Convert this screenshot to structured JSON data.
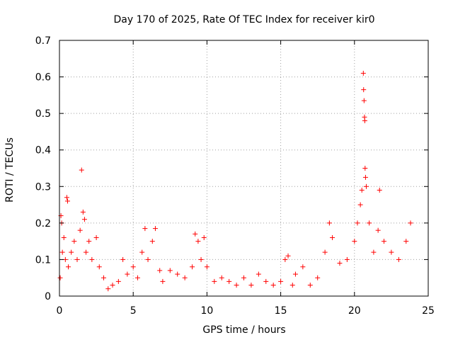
{
  "chart_data": {
    "type": "scatter",
    "title": "Day 170 of 2025, Rate Of TEC Index for receiver kir0",
    "xlabel": "GPS time / hours",
    "ylabel": "ROTI / TECUs",
    "xlim": [
      0,
      25
    ],
    "ylim": [
      0,
      0.7
    ],
    "xticks": [
      0,
      5,
      10,
      15,
      20,
      25
    ],
    "yticks": [
      0,
      0.1,
      0.2,
      0.3,
      0.4,
      0.5,
      0.6,
      0.7
    ],
    "xtick_labels": [
      "0",
      "5",
      "10",
      "15",
      "20",
      "25"
    ],
    "ytick_labels": [
      "0",
      "0.1",
      "0.2",
      "0.3",
      "0.4",
      "0.5",
      "0.6",
      "0.7"
    ],
    "grid": true,
    "marker": "+",
    "color": "#ff0000",
    "points": [
      [
        0.05,
        0.05
      ],
      [
        0.1,
        0.22
      ],
      [
        0.15,
        0.2
      ],
      [
        0.2,
        0.12
      ],
      [
        0.3,
        0.16
      ],
      [
        0.4,
        0.1
      ],
      [
        0.5,
        0.27
      ],
      [
        0.55,
        0.26
      ],
      [
        0.6,
        0.08
      ],
      [
        0.8,
        0.12
      ],
      [
        1.0,
        0.15
      ],
      [
        1.2,
        0.1
      ],
      [
        1.4,
        0.18
      ],
      [
        1.5,
        0.345
      ],
      [
        1.6,
        0.23
      ],
      [
        1.7,
        0.21
      ],
      [
        1.8,
        0.12
      ],
      [
        2.0,
        0.15
      ],
      [
        2.2,
        0.1
      ],
      [
        2.5,
        0.16
      ],
      [
        2.7,
        0.08
      ],
      [
        3.0,
        0.05
      ],
      [
        3.3,
        0.02
      ],
      [
        3.6,
        0.03
      ],
      [
        4.0,
        0.04
      ],
      [
        4.3,
        0.1
      ],
      [
        4.6,
        0.06
      ],
      [
        5.0,
        0.08
      ],
      [
        5.3,
        0.05
      ],
      [
        5.6,
        0.12
      ],
      [
        5.8,
        0.185
      ],
      [
        6.0,
        0.1
      ],
      [
        6.3,
        0.15
      ],
      [
        6.5,
        0.185
      ],
      [
        6.8,
        0.07
      ],
      [
        7.0,
        0.04
      ],
      [
        7.5,
        0.07
      ],
      [
        8.0,
        0.06
      ],
      [
        8.5,
        0.05
      ],
      [
        9.0,
        0.08
      ],
      [
        9.2,
        0.17
      ],
      [
        9.4,
        0.15
      ],
      [
        9.6,
        0.1
      ],
      [
        9.8,
        0.16
      ],
      [
        10.0,
        0.08
      ],
      [
        10.5,
        0.04
      ],
      [
        11.0,
        0.05
      ],
      [
        11.5,
        0.04
      ],
      [
        12.0,
        0.03
      ],
      [
        12.5,
        0.05
      ],
      [
        13.0,
        0.03
      ],
      [
        13.5,
        0.06
      ],
      [
        14.0,
        0.04
      ],
      [
        14.5,
        0.03
      ],
      [
        15.0,
        0.04
      ],
      [
        15.3,
        0.1
      ],
      [
        15.5,
        0.11
      ],
      [
        15.8,
        0.03
      ],
      [
        16.0,
        0.06
      ],
      [
        16.5,
        0.08
      ],
      [
        17.0,
        0.03
      ],
      [
        17.5,
        0.05
      ],
      [
        18.0,
        0.12
      ],
      [
        18.3,
        0.2
      ],
      [
        18.5,
        0.16
      ],
      [
        19.0,
        0.09
      ],
      [
        19.5,
        0.1
      ],
      [
        20.0,
        0.15
      ],
      [
        20.2,
        0.2
      ],
      [
        20.4,
        0.25
      ],
      [
        20.5,
        0.29
      ],
      [
        20.6,
        0.61
      ],
      [
        20.62,
        0.565
      ],
      [
        20.65,
        0.535
      ],
      [
        20.68,
        0.49
      ],
      [
        20.7,
        0.48
      ],
      [
        20.72,
        0.35
      ],
      [
        20.75,
        0.325
      ],
      [
        20.8,
        0.3
      ],
      [
        21.0,
        0.2
      ],
      [
        21.3,
        0.12
      ],
      [
        21.6,
        0.18
      ],
      [
        21.7,
        0.29
      ],
      [
        22.0,
        0.15
      ],
      [
        22.5,
        0.12
      ],
      [
        23.0,
        0.1
      ],
      [
        23.5,
        0.15
      ],
      [
        23.8,
        0.2
      ]
    ]
  }
}
